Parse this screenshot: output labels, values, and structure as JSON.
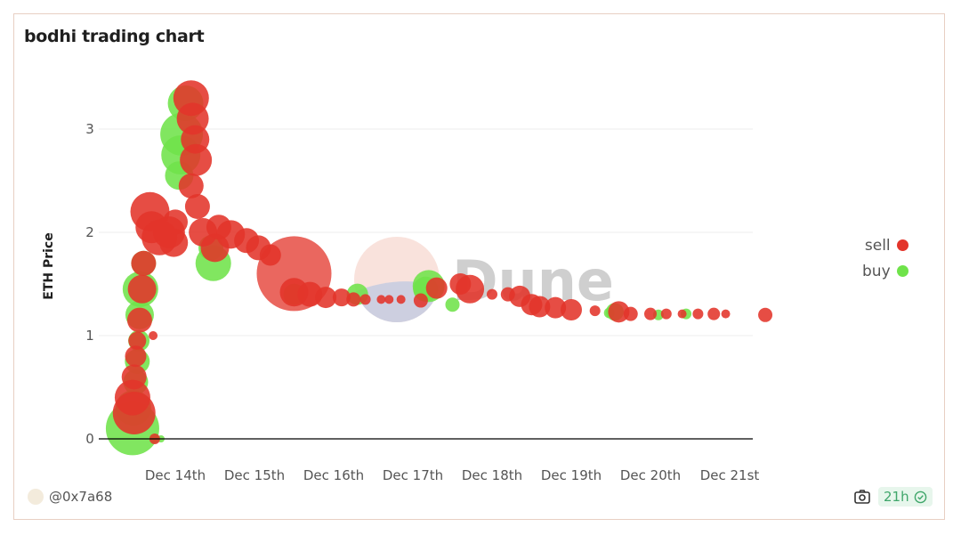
{
  "card": {
    "title": "bodhi trading chart",
    "author": "@0x7a68",
    "refresh_badge": "21h",
    "icons": {
      "screenshot": "camera-icon",
      "status": "check-circle-icon"
    }
  },
  "colors": {
    "sell": "#e3342a",
    "buy": "#6fe34a",
    "grid": "#ededed",
    "axis": "#000000",
    "watermark": "#c8c8c8"
  },
  "watermark": "Dune",
  "chart_data": {
    "type": "scatter",
    "subtype": "bubble",
    "title": "bodhi trading chart",
    "xlabel": "",
    "ylabel": "ETH Price",
    "ylim": [
      0,
      3.5
    ],
    "yticks": [
      0,
      1,
      2,
      3
    ],
    "xticks": [
      "Dec 14th",
      "Dec 15th",
      "Dec 16th",
      "Dec 17th",
      "Dec 18th",
      "Dec 19th",
      "Dec 20th",
      "Dec 21st"
    ],
    "grid": true,
    "legend_position": "right",
    "legend": [
      "sell",
      "buy"
    ],
    "x_unit": "days since Dec 13 00:00",
    "series": [
      {
        "name": "buy",
        "color": "#6fe34a",
        "points": [
          [
            0.46,
            0.1,
            30
          ],
          [
            0.47,
            0.3,
            20
          ],
          [
            0.5,
            0.55,
            14
          ],
          [
            0.52,
            0.75,
            14
          ],
          [
            0.54,
            0.95,
            12
          ],
          [
            0.55,
            1.2,
            16
          ],
          [
            0.56,
            1.45,
            20
          ],
          [
            0.6,
            1.7,
            14
          ],
          [
            0.82,
            0.0,
            4
          ],
          [
            0.74,
            0.0,
            5
          ],
          [
            1.05,
            2.55,
            16
          ],
          [
            1.07,
            2.75,
            22
          ],
          [
            1.08,
            2.95,
            24
          ],
          [
            1.13,
            3.25,
            20
          ],
          [
            1.48,
            1.7,
            20
          ],
          [
            1.45,
            1.85,
            14
          ],
          [
            2.5,
            1.4,
            12
          ],
          [
            3.3,
            1.4,
            12
          ],
          [
            4.2,
            1.48,
            18
          ],
          [
            4.16,
            1.45,
            14
          ],
          [
            4.5,
            1.3,
            8
          ],
          [
            6.48,
            1.22,
            6
          ],
          [
            6.55,
            1.23,
            10
          ],
          [
            7.1,
            1.2,
            6
          ],
          [
            7.45,
            1.21,
            6
          ]
        ]
      },
      {
        "name": "sell",
        "color": "#e3342a",
        "points": [
          [
            0.48,
            0.25,
            24
          ],
          [
            0.46,
            0.4,
            20
          ],
          [
            0.48,
            0.6,
            14
          ],
          [
            0.5,
            0.8,
            12
          ],
          [
            0.52,
            0.95,
            10
          ],
          [
            0.55,
            1.15,
            14
          ],
          [
            0.58,
            1.45,
            16
          ],
          [
            0.6,
            1.7,
            14
          ],
          [
            0.72,
            1.0,
            5
          ],
          [
            0.74,
            0.0,
            6
          ],
          [
            0.68,
            2.2,
            22
          ],
          [
            0.7,
            2.05,
            18
          ],
          [
            0.8,
            1.95,
            20
          ],
          [
            0.92,
            2.0,
            18
          ],
          [
            0.98,
            1.9,
            16
          ],
          [
            1.0,
            2.1,
            14
          ],
          [
            1.2,
            3.3,
            20
          ],
          [
            1.22,
            3.1,
            18
          ],
          [
            1.25,
            2.9,
            16
          ],
          [
            1.26,
            2.7,
            18
          ],
          [
            1.2,
            2.45,
            14
          ],
          [
            1.28,
            2.25,
            14
          ],
          [
            1.35,
            2.0,
            16
          ],
          [
            1.5,
            1.85,
            16
          ],
          [
            1.55,
            2.05,
            14
          ],
          [
            1.7,
            1.98,
            16
          ],
          [
            1.9,
            1.92,
            14
          ],
          [
            2.05,
            1.85,
            14
          ],
          [
            2.2,
            1.78,
            12
          ],
          [
            2.5,
            1.6,
            42
          ],
          [
            2.5,
            1.42,
            16
          ],
          [
            2.7,
            1.4,
            14
          ],
          [
            2.9,
            1.37,
            12
          ],
          [
            3.1,
            1.37,
            10
          ],
          [
            3.25,
            1.35,
            8
          ],
          [
            3.4,
            1.35,
            6
          ],
          [
            3.6,
            1.35,
            5
          ],
          [
            3.7,
            1.35,
            5
          ],
          [
            3.85,
            1.35,
            5
          ],
          [
            4.1,
            1.34,
            8
          ],
          [
            4.3,
            1.46,
            12
          ],
          [
            4.6,
            1.5,
            12
          ],
          [
            4.72,
            1.45,
            16
          ],
          [
            5.0,
            1.4,
            6
          ],
          [
            5.2,
            1.4,
            8
          ],
          [
            5.35,
            1.38,
            12
          ],
          [
            5.5,
            1.3,
            12
          ],
          [
            5.6,
            1.28,
            12
          ],
          [
            5.8,
            1.27,
            12
          ],
          [
            6.0,
            1.25,
            12
          ],
          [
            6.3,
            1.24,
            6
          ],
          [
            6.6,
            1.23,
            12
          ],
          [
            6.75,
            1.21,
            8
          ],
          [
            7.0,
            1.21,
            7
          ],
          [
            7.2,
            1.21,
            6
          ],
          [
            7.4,
            1.21,
            5
          ],
          [
            7.6,
            1.21,
            6
          ],
          [
            7.8,
            1.21,
            7
          ],
          [
            7.95,
            1.21,
            5
          ],
          [
            8.45,
            1.2,
            8
          ]
        ]
      }
    ]
  }
}
